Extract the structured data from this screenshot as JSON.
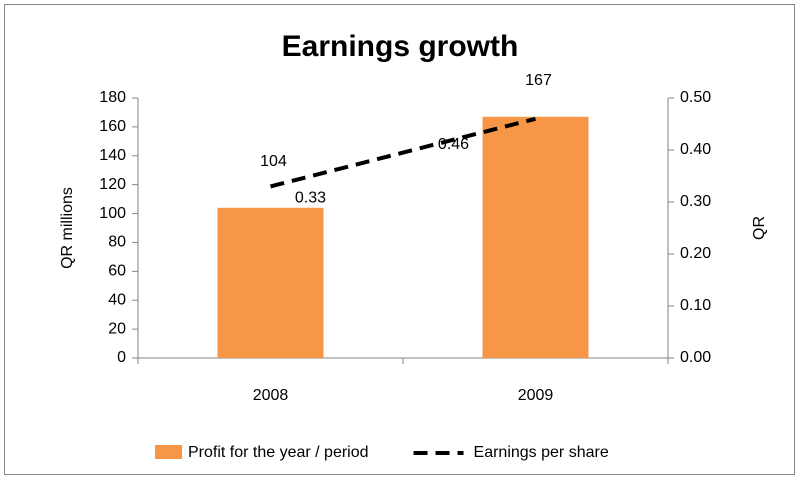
{
  "chart_data": {
    "type": "bar-line",
    "title": "Earnings growth",
    "y_label": "QR millions",
    "y2_label": "QR",
    "categories": [
      "2008",
      "2009"
    ],
    "series": [
      {
        "name": "Profit for the year / period",
        "type": "bar",
        "color": "#f79646",
        "values": [
          104,
          167
        ]
      },
      {
        "name": "Earnings per share",
        "type": "line",
        "color": "#000000",
        "dashed": true,
        "axis": "y2",
        "values": [
          0.33,
          0.46
        ]
      }
    ],
    "ylim": [
      0,
      180
    ],
    "yticks": [
      0,
      20,
      40,
      60,
      80,
      100,
      120,
      140,
      160,
      180
    ],
    "y2lim": [
      0,
      0.5
    ],
    "y2ticks": [
      {
        "value": 0,
        "label": "0.00"
      },
      {
        "value": 0.1,
        "label": "0.10"
      },
      {
        "value": 0.2,
        "label": "0.20"
      },
      {
        "value": 0.3,
        "label": "0.30"
      },
      {
        "value": 0.4,
        "label": "0.40"
      },
      {
        "value": 0.5,
        "label": "0.50"
      }
    ],
    "legend": "bottom",
    "grid": false
  }
}
